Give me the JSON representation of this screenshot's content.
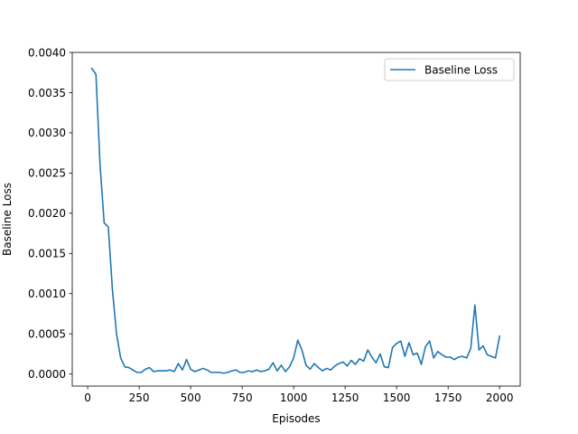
{
  "chart_data": {
    "type": "line",
    "title": "",
    "xlabel": "Episodes",
    "ylabel": "Baseline Loss",
    "xlim": [
      -75,
      2100
    ],
    "ylim": [
      -0.00015,
      0.004
    ],
    "xticks": [
      0,
      250,
      500,
      750,
      1000,
      1250,
      1500,
      1750,
      2000
    ],
    "xtick_labels": [
      "0",
      "250",
      "500",
      "750",
      "1000",
      "1250",
      "1500",
      "1750",
      "2000"
    ],
    "yticks": [
      0.0,
      0.0005,
      0.001,
      0.0015,
      0.002,
      0.0025,
      0.003,
      0.0035,
      0.004
    ],
    "ytick_labels": [
      "0.0000",
      "0.0005",
      "0.0010",
      "0.0015",
      "0.0020",
      "0.0025",
      "0.0030",
      "0.0035",
      "0.0040"
    ],
    "grid": false,
    "legend": {
      "position": "top-right"
    },
    "series": [
      {
        "name": "Baseline Loss",
        "color": "#1f77b4",
        "x": [
          20,
          40,
          60,
          80,
          100,
          120,
          140,
          160,
          180,
          200,
          220,
          240,
          260,
          280,
          300,
          320,
          340,
          360,
          380,
          400,
          420,
          440,
          460,
          480,
          500,
          520,
          540,
          560,
          580,
          600,
          620,
          640,
          660,
          680,
          700,
          720,
          740,
          760,
          780,
          800,
          820,
          840,
          860,
          880,
          900,
          920,
          940,
          960,
          980,
          1000,
          1020,
          1040,
          1060,
          1080,
          1100,
          1120,
          1140,
          1160,
          1180,
          1200,
          1220,
          1240,
          1260,
          1280,
          1300,
          1320,
          1340,
          1360,
          1380,
          1400,
          1420,
          1440,
          1460,
          1480,
          1500,
          1520,
          1540,
          1560,
          1580,
          1600,
          1620,
          1640,
          1660,
          1680,
          1700,
          1720,
          1740,
          1760,
          1780,
          1800,
          1820,
          1840,
          1860,
          1880,
          1900,
          1920,
          1940,
          1960,
          1980,
          2000
        ],
        "y": [
          0.0038,
          0.00373,
          0.0026,
          0.00188,
          0.00183,
          0.00105,
          0.0005,
          0.0002,
          9e-05,
          8e-05,
          5e-05,
          2e-05,
          2e-05,
          6e-05,
          8e-05,
          3e-05,
          4e-05,
          4e-05,
          4e-05,
          5e-05,
          3e-05,
          0.00013,
          5e-05,
          0.00018,
          6e-05,
          3e-05,
          5e-05,
          7e-05,
          5e-05,
          2e-05,
          2e-05,
          2e-05,
          1e-05,
          2e-05,
          4e-05,
          5e-05,
          2e-05,
          2e-05,
          4e-05,
          3e-05,
          5e-05,
          3e-05,
          4e-05,
          6e-05,
          0.00014,
          4e-05,
          0.00011,
          3e-05,
          9e-05,
          0.0002,
          0.00042,
          0.0003,
          0.00011,
          6e-05,
          0.00013,
          8e-05,
          4e-05,
          7e-05,
          5e-05,
          0.0001,
          0.00013,
          0.00015,
          0.0001,
          0.00017,
          0.00012,
          0.00019,
          0.00016,
          0.0003,
          0.00021,
          0.00014,
          0.00025,
          9e-05,
          8e-05,
          0.00033,
          0.00038,
          0.00041,
          0.00022,
          0.00039,
          0.00024,
          0.00026,
          0.00012,
          0.00034,
          0.00041,
          0.0002,
          0.00028,
          0.00024,
          0.00021,
          0.00021,
          0.00018,
          0.00021,
          0.00022,
          0.0002,
          0.00032,
          0.00086,
          0.0003,
          0.00035,
          0.00024,
          0.00022,
          0.0002,
          0.00047
        ]
      }
    ]
  }
}
